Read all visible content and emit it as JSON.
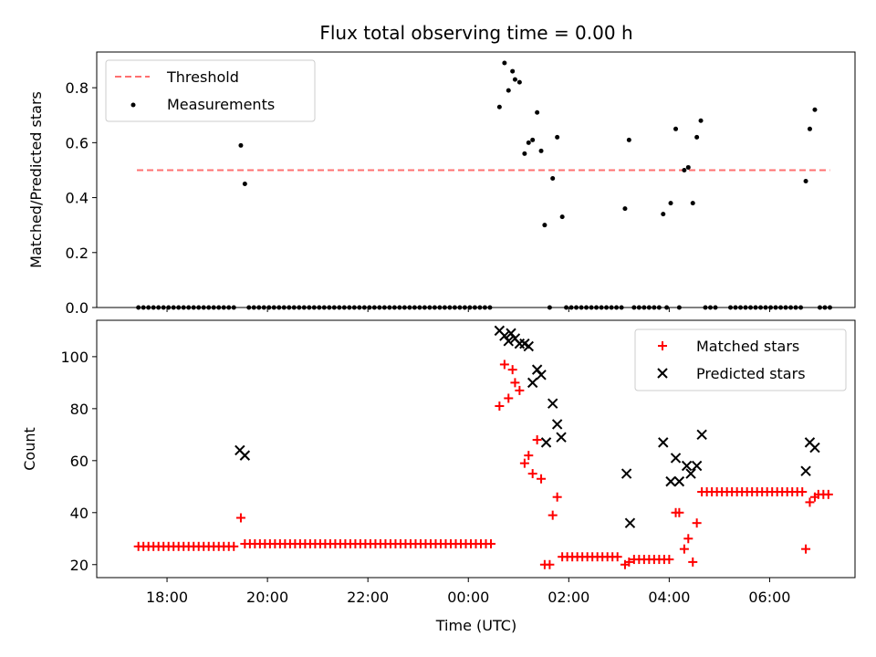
{
  "chart_data": [
    {
      "type": "scatter",
      "title": "Flux total observing time = 0.00 h",
      "xlabel": "",
      "ylabel": "Matched/Predicted stars",
      "x_unit": "hours UTC (values above 24 are the next day)",
      "xlim": [
        16.6,
        7.7
      ],
      "ylim": [
        0.0,
        0.93
      ],
      "y_ticks": [
        "0.0",
        "0.2",
        "0.4",
        "0.6",
        "0.8"
      ],
      "threshold": {
        "name": "Threshold",
        "value": 0.5,
        "x_range": [
          17.4,
          7.2
        ],
        "color": "#ff7070"
      },
      "legend": {
        "placement": "top-left",
        "entries": [
          "Threshold",
          "Measurements"
        ]
      },
      "series": [
        {
          "name": "Measurements",
          "color": "#000000",
          "points": [
            [
              19.47,
              0.59
            ],
            [
              19.55,
              0.45
            ],
            [
              0.62,
              0.73
            ],
            [
              0.72,
              0.89
            ],
            [
              0.8,
              0.79
            ],
            [
              0.88,
              0.86
            ],
            [
              0.93,
              0.83
            ],
            [
              1.02,
              0.82
            ],
            [
              1.12,
              0.56
            ],
            [
              1.2,
              0.6
            ],
            [
              1.28,
              0.61
            ],
            [
              1.37,
              0.71
            ],
            [
              1.45,
              0.57
            ],
            [
              1.52,
              0.3
            ],
            [
              1.68,
              0.47
            ],
            [
              1.77,
              0.62
            ],
            [
              1.87,
              0.33
            ],
            [
              3.12,
              0.36
            ],
            [
              3.2,
              0.61
            ],
            [
              3.88,
              0.34
            ],
            [
              4.03,
              0.38
            ],
            [
              4.13,
              0.65
            ],
            [
              4.3,
              0.5
            ],
            [
              4.38,
              0.51
            ],
            [
              4.47,
              0.38
            ],
            [
              4.55,
              0.62
            ],
            [
              4.63,
              0.68
            ],
            [
              6.72,
              0.46
            ],
            [
              6.8,
              0.65
            ],
            [
              6.9,
              0.72
            ]
          ],
          "zero_points": [
            17.43,
            17.53,
            17.63,
            17.73,
            17.83,
            17.93,
            18.03,
            18.13,
            18.23,
            18.33,
            18.43,
            18.53,
            18.63,
            18.73,
            18.83,
            18.93,
            19.03,
            19.13,
            19.23,
            19.33,
            19.63,
            19.73,
            19.83,
            19.93,
            20.03,
            20.13,
            20.23,
            20.33,
            20.43,
            20.53,
            20.63,
            20.73,
            20.83,
            20.93,
            21.03,
            21.13,
            21.23,
            21.33,
            21.43,
            21.53,
            21.63,
            21.73,
            21.83,
            21.93,
            22.03,
            22.13,
            22.23,
            22.33,
            22.43,
            22.53,
            22.63,
            22.73,
            22.83,
            22.93,
            23.03,
            23.13,
            23.23,
            23.33,
            23.43,
            23.53,
            23.63,
            23.73,
            23.83,
            23.93,
            0.03,
            0.13,
            0.23,
            0.33,
            0.43,
            1.62,
            1.95,
            2.05,
            2.15,
            2.25,
            2.35,
            2.45,
            2.55,
            2.65,
            2.75,
            2.85,
            2.95,
            3.05,
            3.3,
            3.4,
            3.5,
            3.6,
            3.7,
            3.8,
            3.95,
            4.2,
            4.72,
            4.82,
            4.92,
            5.22,
            5.32,
            5.42,
            5.52,
            5.62,
            5.72,
            5.82,
            5.92,
            6.02,
            6.12,
            6.22,
            6.32,
            6.42,
            6.52,
            6.62,
            7.0,
            7.1,
            7.2
          ]
        }
      ]
    },
    {
      "type": "scatter",
      "title": "",
      "xlabel": "Time (UTC)",
      "ylabel": "Count",
      "x_unit": "hours UTC (values above 24 are the next day)",
      "xlim": [
        16.6,
        7.7
      ],
      "ylim": [
        15,
        114
      ],
      "x_ticks": [
        "18:00",
        "20:00",
        "22:00",
        "00:00",
        "02:00",
        "04:00",
        "06:00"
      ],
      "y_ticks": [
        "20",
        "40",
        "60",
        "80",
        "100"
      ],
      "legend": {
        "placement": "top-right",
        "entries": [
          "Matched stars",
          "Predicted stars"
        ]
      },
      "series": [
        {
          "name": "Matched stars",
          "color": "#ff0000",
          "marker": "plus",
          "points": [
            [
              19.47,
              38
            ],
            [
              0.62,
              81
            ],
            [
              0.72,
              97
            ],
            [
              0.8,
              84
            ],
            [
              0.88,
              95
            ],
            [
              0.93,
              90
            ],
            [
              1.02,
              87
            ],
            [
              1.12,
              59
            ],
            [
              1.2,
              62
            ],
            [
              1.28,
              55
            ],
            [
              1.37,
              68
            ],
            [
              1.45,
              53
            ],
            [
              1.52,
              20
            ],
            [
              1.62,
              20
            ],
            [
              1.68,
              39
            ],
            [
              1.77,
              46
            ],
            [
              3.12,
              20
            ],
            [
              3.2,
              21
            ],
            [
              4.13,
              40
            ],
            [
              4.2,
              40
            ],
            [
              4.3,
              26
            ],
            [
              4.38,
              30
            ],
            [
              4.47,
              21
            ],
            [
              4.55,
              36
            ],
            [
              6.72,
              26
            ],
            [
              6.8,
              44
            ],
            [
              6.9,
              46
            ]
          ],
          "runs": [
            {
              "from": 17.43,
              "to": 19.33,
              "step": 0.1,
              "value": 27
            },
            {
              "from": 19.55,
              "to": 0.53,
              "step": 0.1,
              "value": 28
            },
            {
              "from": 1.87,
              "to": 3.05,
              "step": 0.1,
              "value": 23
            },
            {
              "from": 3.3,
              "to": 4.05,
              "step": 0.1,
              "value": 22
            },
            {
              "from": 4.65,
              "to": 6.65,
              "step": 0.1,
              "value": 48
            },
            {
              "from": 6.97,
              "to": 7.25,
              "step": 0.1,
              "value": 47
            }
          ]
        },
        {
          "name": "Predicted stars",
          "color": "#000000",
          "marker": "x",
          "points": [
            [
              19.45,
              64
            ],
            [
              19.55,
              62
            ],
            [
              0.62,
              110
            ],
            [
              0.72,
              108
            ],
            [
              0.8,
              106
            ],
            [
              0.85,
              109
            ],
            [
              0.93,
              107
            ],
            [
              1.02,
              105
            ],
            [
              1.12,
              105
            ],
            [
              1.2,
              104
            ],
            [
              1.28,
              90
            ],
            [
              1.37,
              95
            ],
            [
              1.45,
              93
            ],
            [
              1.55,
              67
            ],
            [
              1.68,
              82
            ],
            [
              1.77,
              74
            ],
            [
              1.85,
              69
            ],
            [
              3.15,
              55
            ],
            [
              3.22,
              36
            ],
            [
              3.88,
              67
            ],
            [
              4.03,
              52
            ],
            [
              4.13,
              61
            ],
            [
              4.2,
              52
            ],
            [
              4.35,
              58
            ],
            [
              4.43,
              55
            ],
            [
              4.55,
              58
            ],
            [
              4.65,
              70
            ],
            [
              6.72,
              56
            ],
            [
              6.8,
              67
            ],
            [
              6.9,
              65
            ]
          ]
        }
      ]
    }
  ]
}
